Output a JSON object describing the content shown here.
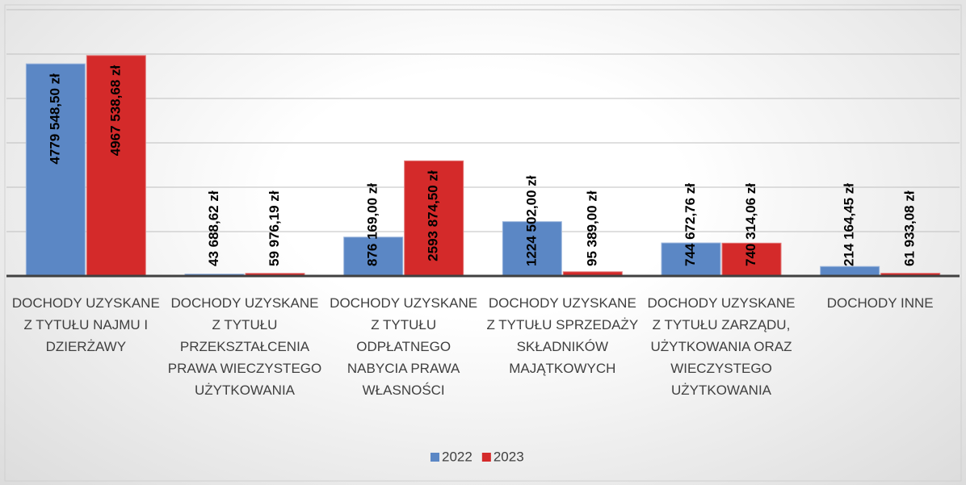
{
  "chart_data": {
    "type": "bar",
    "categories": [
      "DOCHODY UZYSKANE Z TYTUŁU NAJMU I DZIERŻAWY",
      "DOCHODY UZYSKANE Z TYTUŁU PRZEKSZTAŁCENIA PRAWA WIECZYSTEGO UŻYTKOWANIA",
      "DOCHODY UZYSKANE Z TYTUŁU ODPŁATNEGO NABYCIA PRAWA WŁASNOŚCI",
      "DOCHODY UZYSKANE Z TYTUŁU SPRZEDAŻY SKŁADNIKÓW MAJĄTKOWYCH",
      "DOCHODY UZYSKANE Z TYTUŁU ZARZĄDU, UŻYTKOWANIA ORAZ WIECZYSTEGO UŻYTKOWANIA",
      "DOCHODY INNE"
    ],
    "series": [
      {
        "name": "2022",
        "color": "#5b87c5",
        "values": [
          4779548.5,
          43688.62,
          876169.0,
          1224502.0,
          744672.76,
          214164.45
        ],
        "value_labels": [
          "4779 548,50 zł",
          "43 688,62 zł",
          "876 169,00 zł",
          "1224 502,00 zł",
          "744 672,76 zł",
          "214 164,45 zł"
        ]
      },
      {
        "name": "2023",
        "color": "#d42a2a",
        "values": [
          4967538.68,
          59976.19,
          2593874.5,
          95389.0,
          740314.06,
          61933.08
        ],
        "value_labels": [
          "4967 538,68 zł",
          "59 976,19 zł",
          "2593 874,50 zł",
          "95 389,00 zł",
          "740 314,06 zł",
          "61 933,08 zł"
        ]
      }
    ],
    "ylim": [
      0,
      6000000
    ],
    "yticks": [
      0,
      1000000,
      2000000,
      3000000,
      4000000,
      5000000,
      6000000
    ],
    "grid": true,
    "legend": "bottom"
  }
}
